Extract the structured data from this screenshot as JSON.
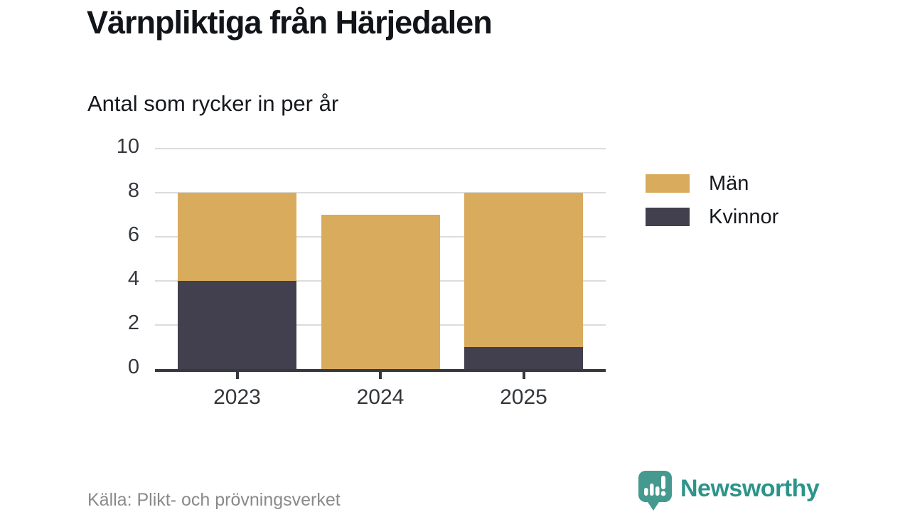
{
  "header": {
    "title": "Värnpliktiga från Härjedalen",
    "subtitle": "Antal som rycker in per år"
  },
  "chart_data": {
    "type": "bar",
    "stacked": true,
    "title": "Värnpliktiga från Härjedalen",
    "subtitle": "Antal som rycker in per år",
    "categories": [
      "2023",
      "2024",
      "2025"
    ],
    "series": [
      {
        "name": "Män",
        "color": "#d9ab5d",
        "values": [
          4,
          7,
          7
        ]
      },
      {
        "name": "Kvinnor",
        "color": "#423f4e",
        "values": [
          4,
          0,
          1
        ]
      }
    ],
    "stack_totals": [
      8,
      7,
      8
    ],
    "xlabel": "",
    "ylabel": "",
    "ylim": [
      0,
      10
    ],
    "yticks": [
      0,
      2,
      4,
      6,
      8,
      10
    ],
    "grid": true,
    "legend_position": "right"
  },
  "colors": {
    "men": "#d9ab5d",
    "women": "#423f4e",
    "gridline": "#dcdcdd",
    "axis": "#36393e",
    "text": "#16181d",
    "muted_text": "#8a8a8a",
    "brand_teal": "#2d948a",
    "brand_icon_teal": "#45998f"
  },
  "footer": {
    "source": "Källa: Plikt- och prövningsverket",
    "brand_name": "Newsworthy"
  }
}
